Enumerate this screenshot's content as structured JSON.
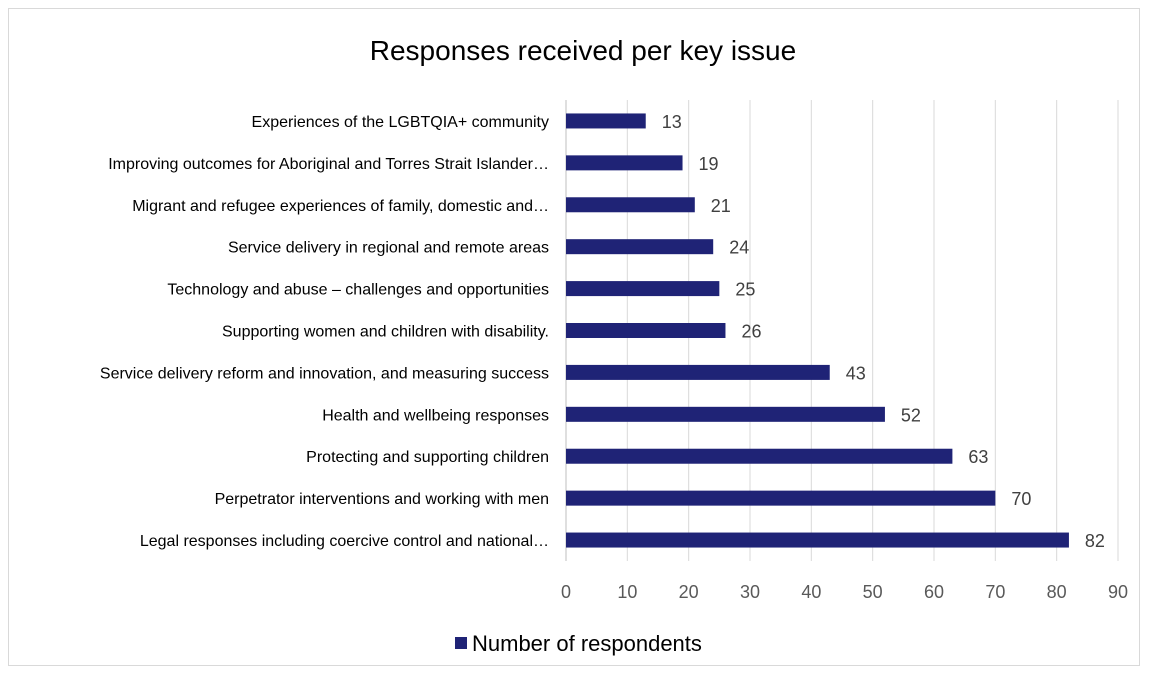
{
  "chart_data": {
    "type": "bar",
    "orientation": "horizontal",
    "title": "Responses received per key issue",
    "xlabel": "",
    "ylabel": "",
    "categories": [
      "Experiences of the LGBTQIA+ community",
      "Improving outcomes for Aboriginal and Torres Strait Islander…",
      "Migrant and refugee experiences of family, domestic and…",
      "Service delivery in regional and remote areas",
      "Technology and abuse – challenges and opportunities",
      "Supporting women and children with disability.",
      "Service delivery reform and innovation, and measuring success",
      "Health and wellbeing responses",
      "Protecting and supporting children",
      "Perpetrator interventions and working with men",
      "Legal responses including coercive control and national…"
    ],
    "series": [
      {
        "name": "Number of respondents",
        "values": [
          13,
          19,
          21,
          24,
          25,
          26,
          43,
          52,
          63,
          70,
          82
        ]
      }
    ],
    "xlim": [
      0,
      90
    ],
    "xticks": [
      0,
      10,
      20,
      30,
      40,
      50,
      60,
      70,
      80,
      90
    ],
    "grid": "vertical",
    "legend_position": "bottom",
    "colors": {
      "bar": "#1f2376",
      "grid": "#d9d9d9",
      "axis": "#bfbfbf"
    }
  }
}
